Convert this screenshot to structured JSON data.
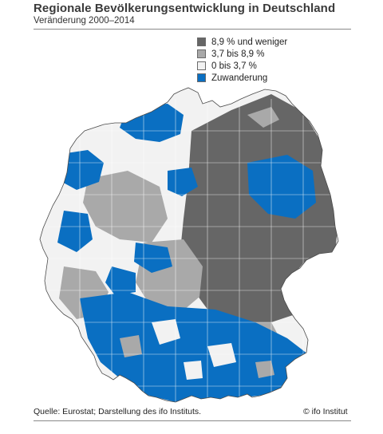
{
  "title": "Regionale Bevölkerungsentwicklung in Deutschland",
  "subtitle": "Veränderung 2000–2014",
  "legend": [
    {
      "label": "8,9 % und weniger",
      "color": "#666666"
    },
    {
      "label": "3,7 bis 8,9 %",
      "color": "#a9a9a9"
    },
    {
      "label": "0 bis 3,7 %",
      "color": "#f2f2f2"
    },
    {
      "label": "Zuwanderung",
      "color": "#0a6fc2"
    }
  ],
  "source": "Quelle: Eurostat; Darstellung des ifo Instituts.",
  "credit": "© ifo Institut"
}
